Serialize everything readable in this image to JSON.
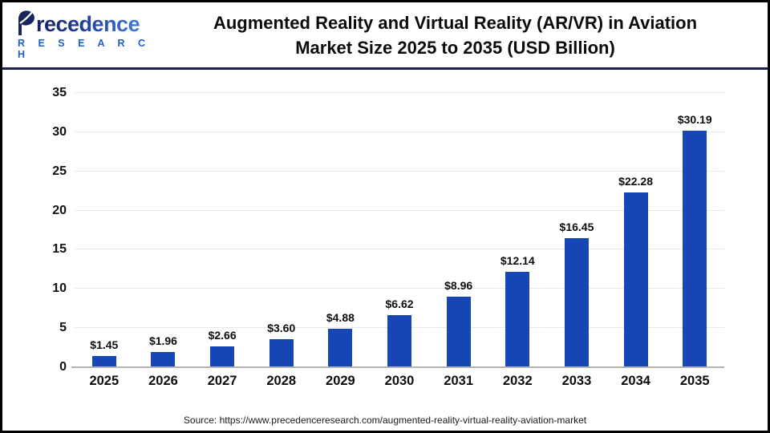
{
  "header": {
    "logo": {
      "line1": "recedence",
      "line2": "R E S E A R C H"
    },
    "title_line1": "Augmented Reality and Virtual Reality (AR/VR) in Aviation",
    "title_line2": "Market Size 2025 to 2035 (USD Billion)"
  },
  "chart_data": {
    "type": "bar",
    "title": "Augmented Reality and Virtual Reality (AR/VR) in Aviation Market Size 2025 to 2035 (USD Billion)",
    "categories": [
      "2025",
      "2026",
      "2027",
      "2028",
      "2029",
      "2030",
      "2031",
      "2032",
      "2033",
      "2034",
      "2035"
    ],
    "values": [
      1.45,
      1.96,
      2.66,
      3.6,
      4.88,
      6.62,
      8.96,
      12.14,
      16.45,
      22.28,
      30.19
    ],
    "value_labels": [
      "$1.45",
      "$1.96",
      "$2.66",
      "$3.60",
      "$4.88",
      "$6.62",
      "$8.96",
      "$12.14",
      "$16.45",
      "$22.28",
      "$30.19"
    ],
    "xlabel": "",
    "ylabel": "",
    "ylim": [
      0,
      35
    ],
    "yticks": [
      0,
      5,
      10,
      15,
      20,
      25,
      30,
      35
    ],
    "grid": true,
    "legend": false,
    "bar_color": "#1646b4"
  },
  "footer": {
    "source": "Source: https://www.precedenceresearch.com/augmented-reality-virtual-reality-aviation-market"
  },
  "colors": {
    "bar": "#1646b4",
    "header_divider": "#1c2150",
    "axis_line": "#b3b3b3",
    "gridline": "#e8e8e8",
    "logo_dark": "#15235f",
    "logo_light": "#3c7bd9",
    "research_blue": "#2160c4"
  }
}
